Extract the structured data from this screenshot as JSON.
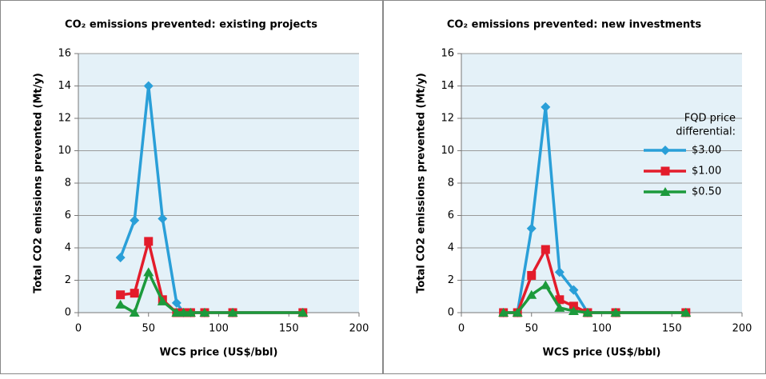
{
  "chart_data": [
    {
      "type": "line",
      "title": "CO₂ emissions prevented: existing projects",
      "x_label": "WCS price (US$/bbl)",
      "y_label": "Total CO2 emissions prevented (Mt/y)",
      "x": [
        30,
        40,
        50,
        60,
        70,
        75,
        80,
        90,
        110,
        160
      ],
      "series": [
        {
          "color": "#2a9fd8",
          "marker": "diamond",
          "values": [
            3.4,
            5.7,
            14,
            5.8,
            0.6,
            0,
            0,
            0,
            0,
            0
          ]
        },
        {
          "color": "#e31c2b",
          "marker": "square",
          "values": [
            1.1,
            1.2,
            4.4,
            0.8,
            0,
            0,
            0,
            0,
            0,
            0
          ]
        },
        {
          "color": "#1c9a3c",
          "marker": "triangle",
          "values": [
            0.5,
            0,
            2.5,
            0.7,
            0,
            0,
            0,
            0,
            0,
            0
          ]
        }
      ],
      "xlim": [
        0,
        200
      ],
      "xticks": [
        0,
        50,
        100,
        150,
        200
      ],
      "ylim": [
        0,
        16
      ],
      "yticks": [
        0,
        2,
        4,
        6,
        8,
        10,
        12,
        14,
        16
      ],
      "grid": true,
      "legend": false
    },
    {
      "type": "line",
      "title": "CO₂ emissions prevented: new investments",
      "x_label": "WCS price (US$/bbl)",
      "y_label": "Total CO2 emissions prevented (Mt/y)",
      "x": [
        30,
        40,
        50,
        60,
        70,
        80,
        90,
        110,
        160
      ],
      "legend_title": [
        "FQD price",
        "differential:"
      ],
      "series": [
        {
          "name": "$3.00",
          "color": "#2a9fd8",
          "marker": "diamond",
          "values": [
            0,
            0,
            5.2,
            12.7,
            2.5,
            1.4,
            0,
            0,
            0
          ]
        },
        {
          "name": "$1.00",
          "color": "#e31c2b",
          "marker": "square",
          "values": [
            0,
            0,
            2.3,
            3.9,
            0.8,
            0.4,
            0,
            0,
            0
          ]
        },
        {
          "name": "$0.50",
          "color": "#1c9a3c",
          "marker": "triangle",
          "values": [
            0,
            0,
            1.1,
            1.7,
            0.3,
            0.1,
            0,
            0,
            0
          ]
        }
      ],
      "xlim": [
        0,
        200
      ],
      "xticks": [
        0,
        50,
        100,
        150,
        200
      ],
      "ylim": [
        0,
        16
      ],
      "yticks": [
        0,
        2,
        4,
        6,
        8,
        10,
        12,
        14,
        16
      ],
      "grid": true,
      "legend": true
    }
  ]
}
